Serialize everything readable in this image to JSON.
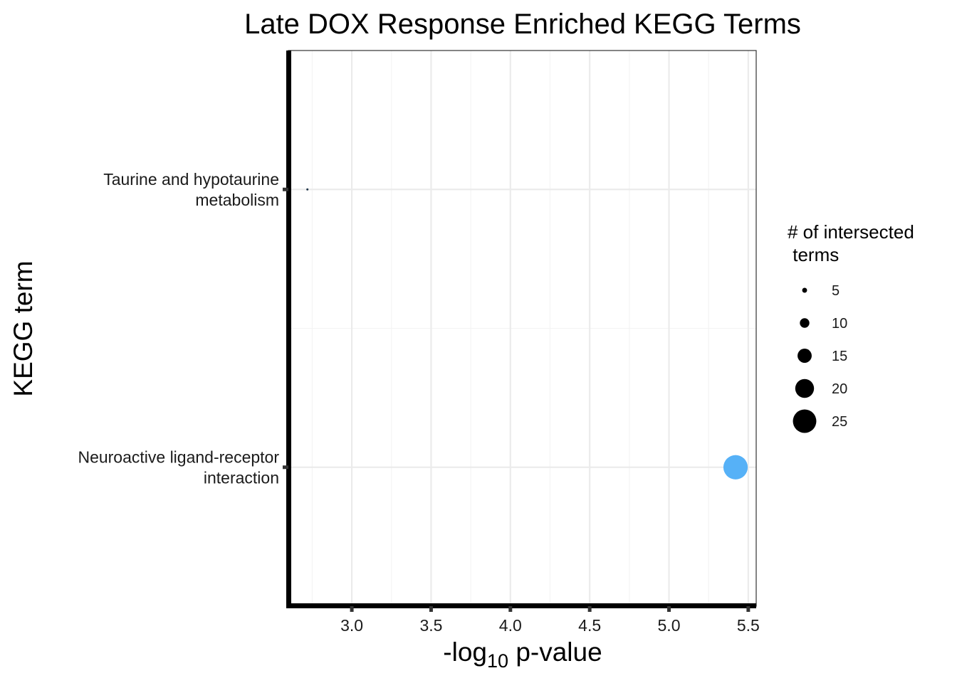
{
  "chart_data": {
    "type": "scatter",
    "title": "Late DOX Response Enriched KEGG Terms",
    "xlabel_main": "-log",
    "xlabel_sub": "10",
    "xlabel_rest": " p-value",
    "ylabel": "KEGG term",
    "xlim": [
      2.6,
      5.55
    ],
    "xticks": [
      3.0,
      3.5,
      4.0,
      4.5,
      5.0,
      5.5
    ],
    "xtick_labels": [
      "3.0",
      "3.5",
      "4.0",
      "4.5",
      "5.0",
      "5.5"
    ],
    "categories": [
      {
        "lines": [
          "Taurine and hypotaurine",
          "metabolism"
        ]
      },
      {
        "lines": [
          "Neuroactive ligand-receptor",
          "interaction"
        ]
      }
    ],
    "points": [
      {
        "term": "Taurine and hypotaurine metabolism",
        "x": 2.72,
        "size": 2,
        "color": "#1f3448"
      },
      {
        "term": "Neuroactive ligand-receptor interaction",
        "x": 5.42,
        "size": 26,
        "color": "#56b1f7"
      }
    ],
    "legend": {
      "title_lines": [
        "# of intersected",
        " terms"
      ],
      "entries": [
        {
          "label": "5",
          "size": 5
        },
        {
          "label": "10",
          "size": 10
        },
        {
          "label": "15",
          "size": 15
        },
        {
          "label": "20",
          "size": 20
        },
        {
          "label": "25",
          "size": 25
        }
      ],
      "position": "right"
    }
  }
}
